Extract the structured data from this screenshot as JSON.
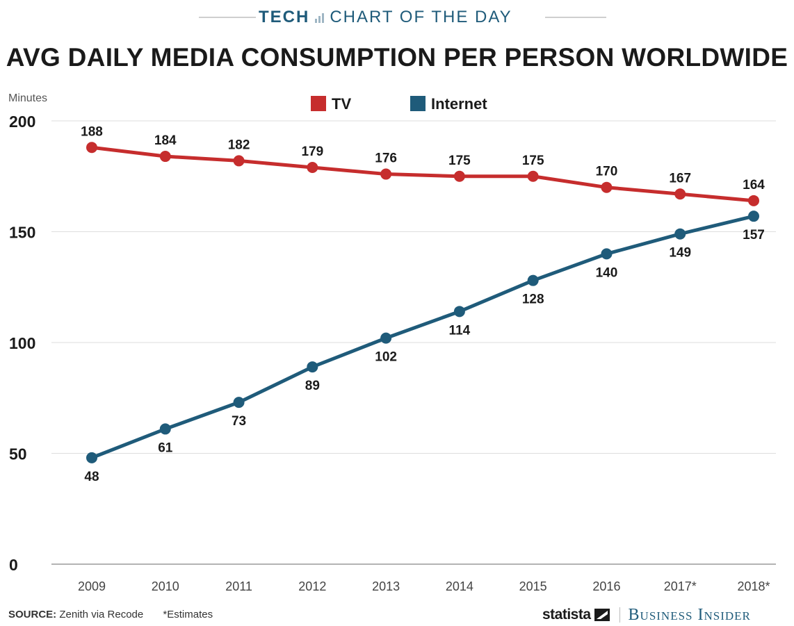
{
  "banner": {
    "tech": "TECH",
    "section": "CHART OF THE DAY"
  },
  "title": "AVG DAILY MEDIA CONSUMPTION PER PERSON WORLDWIDE",
  "footer": {
    "source_label": "SOURCE:",
    "source_text": " Zenith via Recode",
    "note": "*Estimates"
  },
  "brand": {
    "statista": "statista",
    "publisher": "Business Insider"
  },
  "colors": {
    "tv": "#c62d2d",
    "internet": "#1f5b7a",
    "grid": "#dddddd",
    "banner": "#1f5b7a"
  },
  "chart_data": {
    "type": "line",
    "ylabel": "Minutes",
    "xlabel": "",
    "ylim": [
      0,
      200
    ],
    "yticks": [
      0,
      50,
      100,
      150,
      200
    ],
    "grid": true,
    "legend": "top-center",
    "categories": [
      "2009",
      "2010",
      "2011",
      "2012",
      "2013",
      "2014",
      "2015",
      "2016",
      "2017*",
      "2018*"
    ],
    "series": [
      {
        "name": "TV",
        "color": "#c62d2d",
        "label_position": "above",
        "values": [
          188,
          184,
          182,
          179,
          176,
          175,
          175,
          170,
          167,
          164
        ]
      },
      {
        "name": "Internet",
        "color": "#1f5b7a",
        "label_position": "below",
        "values": [
          48,
          61,
          73,
          89,
          102,
          114,
          128,
          140,
          149,
          157
        ]
      }
    ]
  }
}
